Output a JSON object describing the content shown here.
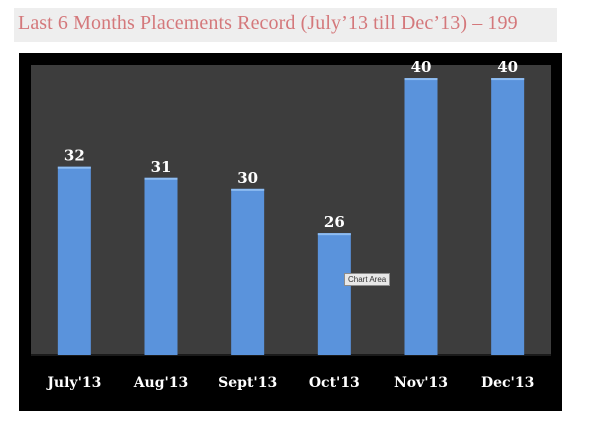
{
  "page": {
    "title": "Last 6 Months Placements Record (July’13 till Dec’13) – 199"
  },
  "colors": {
    "title": "#d4787b",
    "frame": "#000000",
    "plot_area": "#3d3d3d",
    "bar": "#5a93dc",
    "bar_top": "#8fbdf2",
    "text": "#ffffff"
  },
  "tooltip": {
    "label": "Chart Area"
  },
  "chart_data": {
    "type": "bar",
    "categories": [
      "July'13",
      "Aug'13",
      "Sept'13",
      "Oct'13",
      "Nov'13",
      "Dec'13"
    ],
    "values": [
      32,
      31,
      30,
      26,
      40,
      40
    ],
    "data_labels": [
      "32",
      "31",
      "30",
      "26",
      "40",
      "40"
    ],
    "title": "",
    "xlabel": "",
    "ylabel": "",
    "ylim": [
      15,
      41
    ],
    "grid": false,
    "legend": "none"
  }
}
